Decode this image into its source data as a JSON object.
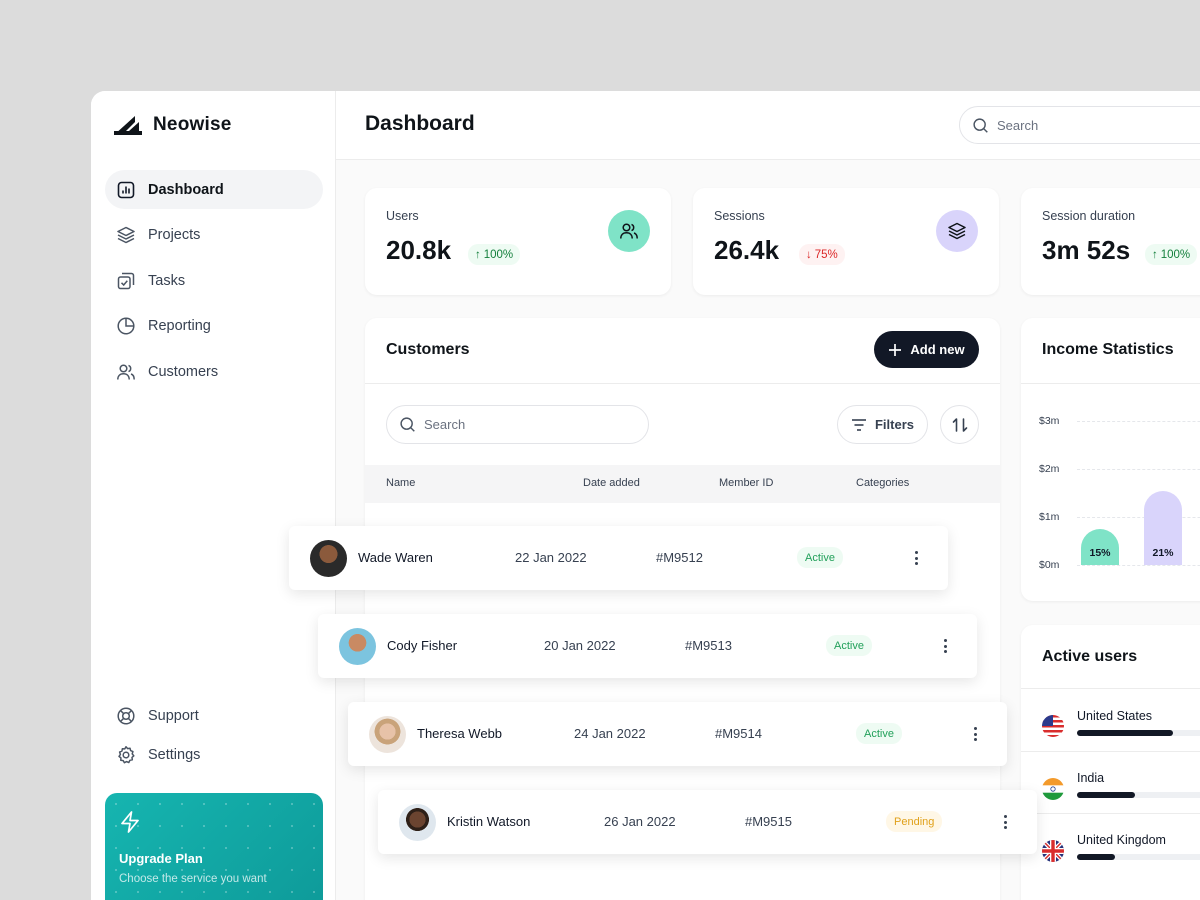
{
  "brand": {
    "name": "Neowise"
  },
  "sidebar": {
    "items": [
      {
        "label": "Dashboard",
        "icon": "chart-icon",
        "active": true
      },
      {
        "label": "Projects",
        "icon": "layers-icon",
        "active": false
      },
      {
        "label": "Tasks",
        "icon": "tasks-icon",
        "active": false
      },
      {
        "label": "Reporting",
        "icon": "pie-chart-icon",
        "active": false
      },
      {
        "label": "Customers",
        "icon": "users-icon",
        "active": false
      }
    ],
    "bottom_items": [
      {
        "label": "Support",
        "icon": "lifebuoy-icon"
      },
      {
        "label": "Settings",
        "icon": "gear-icon"
      }
    ],
    "upgrade": {
      "title": "Upgrade Plan",
      "subtitle": "Choose the service you want"
    }
  },
  "header": {
    "title": "Dashboard",
    "search_placeholder": "Search"
  },
  "stats": [
    {
      "label": "Users",
      "value": "20.8k",
      "change": "100%",
      "direction": "up",
      "icon": "users-icon",
      "icon_bg": "#7fe3c7"
    },
    {
      "label": "Sessions",
      "value": "26.4k",
      "change": "75%",
      "direction": "down",
      "icon": "layers-icon",
      "icon_bg": "#d9d4fb"
    },
    {
      "label": "Session duration",
      "value": "3m 52s",
      "change": "100%",
      "direction": "up"
    }
  ],
  "customers": {
    "title": "Customers",
    "add_label": "Add new",
    "search_placeholder": "Search",
    "filters_label": "Filters",
    "columns": [
      "Name",
      "Date added",
      "Member ID",
      "Categories"
    ],
    "rows": [
      {
        "name": "Wade Waren",
        "date": "22 Jan 2022",
        "id": "#M9512",
        "status": "Active"
      },
      {
        "name": "Cody Fisher",
        "date": "20 Jan 2022",
        "id": "#M9513",
        "status": "Active"
      },
      {
        "name": "Theresa Webb",
        "date": "24 Jan 2022",
        "id": "#M9514",
        "status": "Active"
      },
      {
        "name": "Kristin Watson",
        "date": "26 Jan 2022",
        "id": "#M9515",
        "status": "Pending"
      }
    ]
  },
  "income": {
    "title": "Income Statistics",
    "y_ticks": [
      "$3m",
      "$2m",
      "$1m",
      "$0m"
    ],
    "bars": [
      {
        "label": "15%",
        "value": 0.75,
        "color": "#7fe3c7"
      },
      {
        "label": "21%",
        "value": 1.55,
        "color": "#d9d4fb"
      }
    ]
  },
  "active_users": {
    "title": "Active users",
    "countries": [
      {
        "name": "United States",
        "flag": "us-flag-icon",
        "share": 0.48
      },
      {
        "name": "India",
        "flag": "india-flag-icon",
        "share": 0.29
      },
      {
        "name": "United Kingdom",
        "flag": "uk-flag-icon",
        "share": 0.19
      }
    ]
  },
  "colors": {
    "accent_dark": "#121826",
    "teal": "#0e9a99",
    "active_green": "#22a05a",
    "pending_amber": "#e0a11b"
  }
}
